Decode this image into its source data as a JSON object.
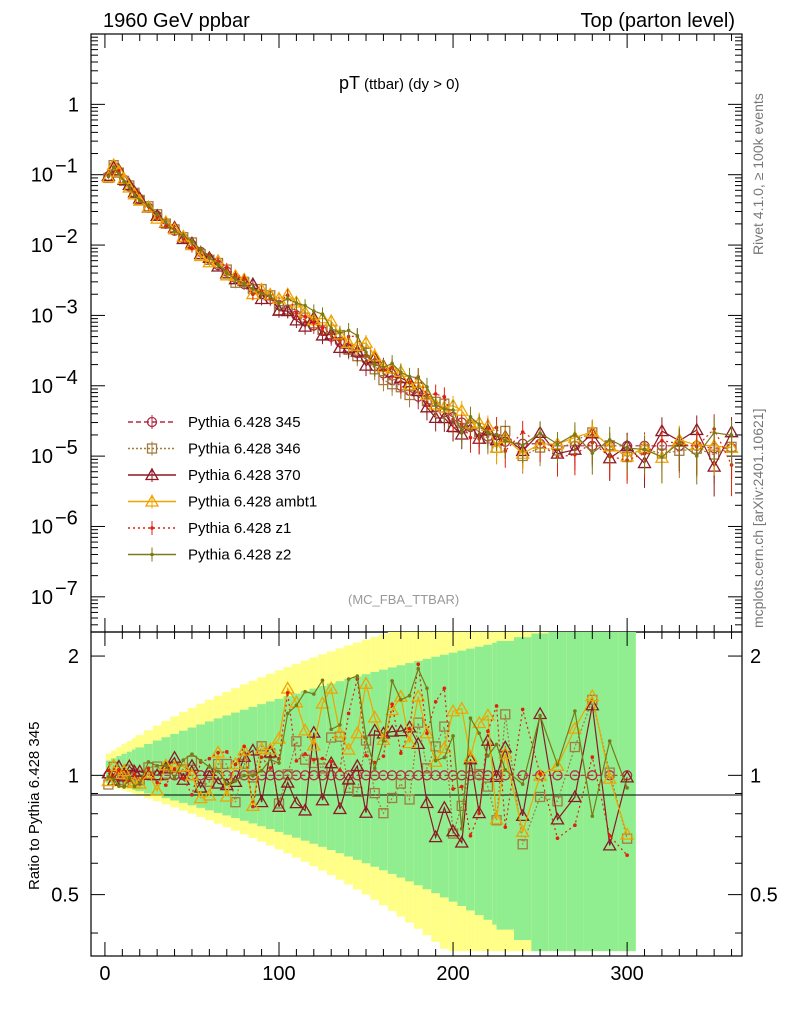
{
  "header": {
    "left": "1960 GeV ppbar",
    "right": "Top (parton level)"
  },
  "side": {
    "rivet": "Rivet 4.1.0, ≥ 100k events",
    "mcplots": "mcplots.cern.ch [arXiv:2401.10621]"
  },
  "chart_data": {
    "type": "line",
    "title_main": "pT",
    "title_sub": "(ttbar) (dy > 0)",
    "analysis_tag": "(MC_FBA_TTBAR)",
    "ratio_ylabel": "Ratio to Pythia 6.428 345",
    "xlim": [
      -8,
      366
    ],
    "upper_ylim_log10": [
      -7.5,
      1.0
    ],
    "upper_ytick_labels": [
      {
        "exp": 0,
        "label": "1",
        "pow": ""
      },
      {
        "exp": -1,
        "label": "10",
        "pow": "−1"
      },
      {
        "exp": -2,
        "label": "10",
        "pow": "−2"
      },
      {
        "exp": -3,
        "label": "10",
        "pow": "−3"
      },
      {
        "exp": -4,
        "label": "10",
        "pow": "−4"
      },
      {
        "exp": -5,
        "label": "10",
        "pow": "−5"
      },
      {
        "exp": -6,
        "label": "10",
        "pow": "−6"
      },
      {
        "exp": -7,
        "label": "10",
        "pow": "−7"
      }
    ],
    "ratio_ylim": [
      0.35,
      2.3
    ],
    "ratio_yticks": [
      {
        "v": 0.5,
        "label": "0.5"
      },
      {
        "v": 1,
        "label": "1"
      },
      {
        "v": 2,
        "label": "2"
      }
    ],
    "xticks": [
      {
        "v": 0,
        "label": "0"
      },
      {
        "v": 100,
        "label": "100"
      },
      {
        "v": 200,
        "label": "200"
      },
      {
        "v": 300,
        "label": "300"
      }
    ],
    "series": [
      {
        "name": "Pythia 6.428 345",
        "color": "#b22c44",
        "marker": "circle",
        "dash": "5,3"
      },
      {
        "name": "Pythia 6.428 346",
        "color": "#a37b3e",
        "marker": "square",
        "dash": "2,2"
      },
      {
        "name": "Pythia 6.428 370",
        "color": "#8b1a26",
        "marker": "triangle",
        "dash": ""
      },
      {
        "name": "Pythia 6.428 ambt1",
        "color": "#f0a400",
        "marker": "triangle",
        "dash": ""
      },
      {
        "name": "Pythia 6.428 z1",
        "color": "#e0200c",
        "marker": "dot",
        "dash": "2,3"
      },
      {
        "name": "Pythia 6.428 z2",
        "color": "#7a7a16",
        "marker": "dot",
        "dash": ""
      }
    ],
    "ref_points": [
      [
        2,
        0.095
      ],
      [
        5,
        0.13
      ],
      [
        8,
        0.11
      ],
      [
        11,
        0.085
      ],
      [
        14,
        0.068
      ],
      [
        17,
        0.055
      ],
      [
        20,
        0.045
      ],
      [
        25,
        0.034
      ],
      [
        30,
        0.026
      ],
      [
        35,
        0.02
      ],
      [
        40,
        0.016
      ],
      [
        45,
        0.0125
      ],
      [
        50,
        0.01
      ],
      [
        55,
        0.008
      ],
      [
        60,
        0.0064
      ],
      [
        65,
        0.0052
      ],
      [
        70,
        0.0042
      ],
      [
        75,
        0.0034
      ],
      [
        80,
        0.0028
      ],
      [
        85,
        0.0024
      ],
      [
        90,
        0.002
      ],
      [
        95,
        0.0017
      ],
      [
        100,
        0.0014
      ],
      [
        105,
        0.0012
      ],
      [
        110,
        0.001
      ],
      [
        115,
        0.00085
      ],
      [
        120,
        0.00072
      ],
      [
        125,
        0.0006
      ],
      [
        130,
        0.0005
      ],
      [
        135,
        0.00042
      ],
      [
        140,
        0.00035
      ],
      [
        145,
        0.00029
      ],
      [
        150,
        0.00024
      ],
      [
        155,
        0.00019
      ],
      [
        160,
        0.00015
      ],
      [
        165,
        0.00012
      ],
      [
        170,
        0.0001
      ],
      [
        175,
        8.5e-05
      ],
      [
        180,
        7e-05
      ],
      [
        185,
        5.8e-05
      ],
      [
        190,
        5e-05
      ],
      [
        195,
        4.2e-05
      ],
      [
        200,
        3.6e-05
      ],
      [
        205,
        3e-05
      ],
      [
        210,
        2.6e-05
      ],
      [
        215,
        2.2e-05
      ],
      [
        220,
        1.9e-05
      ],
      [
        225,
        1.7e-05
      ],
      [
        230,
        1.6e-05
      ],
      [
        240,
        1.5e-05
      ],
      [
        250,
        1.5e-05
      ],
      [
        260,
        1.4e-05
      ],
      [
        270,
        1.4e-05
      ],
      [
        280,
        1.4e-05
      ],
      [
        290,
        1.4e-05
      ],
      [
        300,
        1.4e-05
      ],
      [
        310,
        1.4e-05
      ],
      [
        320,
        1.4e-05
      ],
      [
        330,
        1.4e-05
      ],
      [
        340,
        1.4e-05
      ],
      [
        350,
        1.3e-05
      ],
      [
        360,
        1.3e-05
      ]
    ]
  }
}
